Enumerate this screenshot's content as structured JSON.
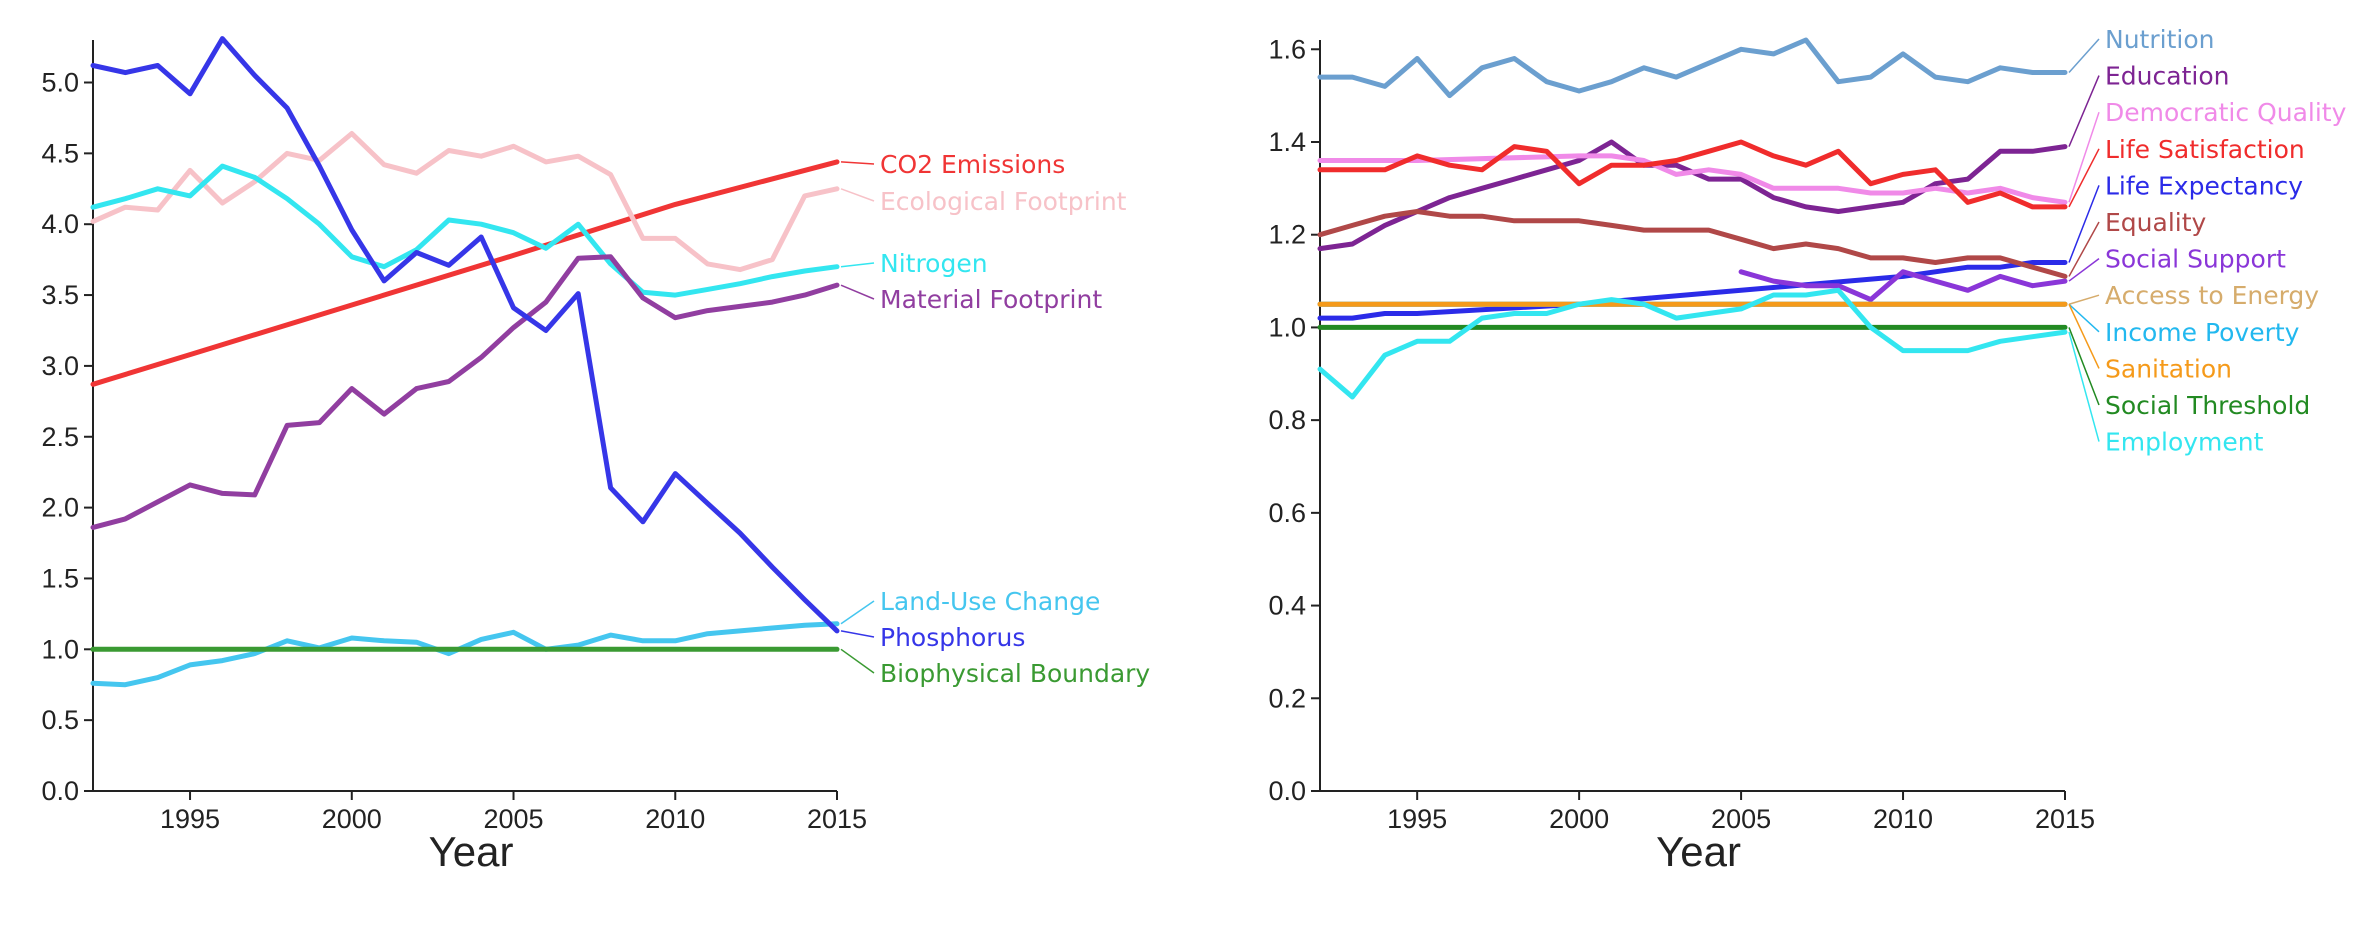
{
  "chart_data": [
    {
      "type": "line",
      "title": "",
      "xlabel": "Year",
      "ylabel": "",
      "xlim": [
        1992,
        2015
      ],
      "ylim": [
        0,
        5.3
      ],
      "xticks": [
        "1995",
        "2000",
        "2005",
        "2010",
        "2015"
      ],
      "yticks": [
        "0.0",
        "0.5",
        "1.0",
        "1.5",
        "2.0",
        "2.5",
        "3.0",
        "3.5",
        "4.0",
        "4.5",
        "5.0"
      ],
      "grid": false,
      "legend": "right-end-labels",
      "series": [
        {
          "name": "CO2 Emissions",
          "color": "#f03535",
          "x": [
            1992,
            1995,
            2000,
            2005,
            2010,
            2015
          ],
          "y": [
            2.87,
            3.08,
            3.43,
            3.78,
            4.14,
            4.44
          ]
        },
        {
          "name": "Ecological Footprint",
          "color": "#f7c2c8",
          "x": [
            1992,
            1993,
            1994,
            1995,
            1996,
            1997,
            1998,
            1999,
            2000,
            2001,
            2002,
            2003,
            2004,
            2005,
            2006,
            2007,
            2008,
            2009,
            2010,
            2011,
            2012,
            2013,
            2014,
            2015
          ],
          "y": [
            4.02,
            4.12,
            4.1,
            4.38,
            4.15,
            4.3,
            4.5,
            4.45,
            4.64,
            4.42,
            4.36,
            4.52,
            4.48,
            4.55,
            4.44,
            4.48,
            4.35,
            3.9,
            3.9,
            3.72,
            3.68,
            3.75,
            4.2,
            4.25
          ]
        },
        {
          "name": "Nitrogen",
          "color": "#33e6f0",
          "x": [
            1992,
            1993,
            1994,
            1995,
            1996,
            1997,
            1998,
            1999,
            2000,
            2001,
            2002,
            2003,
            2004,
            2005,
            2006,
            2007,
            2008,
            2009,
            2010,
            2011,
            2012,
            2013,
            2014,
            2015
          ],
          "y": [
            4.12,
            4.18,
            4.25,
            4.2,
            4.41,
            4.33,
            4.18,
            4.0,
            3.77,
            3.7,
            3.82,
            4.03,
            4.0,
            3.94,
            3.83,
            4.0,
            3.72,
            3.52,
            3.5,
            3.54,
            3.58,
            3.63,
            3.67,
            3.7
          ]
        },
        {
          "name": "Material Footprint",
          "color": "#913ea0",
          "x": [
            1992,
            1993,
            1994,
            1995,
            1996,
            1997,
            1998,
            1999,
            2000,
            2001,
            2002,
            2003,
            2004,
            2005,
            2006,
            2007,
            2008,
            2009,
            2010,
            2011,
            2012,
            2013,
            2014,
            2015
          ],
          "y": [
            1.86,
            1.92,
            2.04,
            2.16,
            2.1,
            2.09,
            2.58,
            2.6,
            2.84,
            2.66,
            2.84,
            2.89,
            3.06,
            3.27,
            3.45,
            3.76,
            3.77,
            3.48,
            3.34,
            3.39,
            3.42,
            3.45,
            3.5,
            3.57
          ]
        },
        {
          "name": "Land-Use Change",
          "color": "#45c6ef",
          "x": [
            1992,
            1993,
            1994,
            1995,
            1996,
            1997,
            1998,
            1999,
            2000,
            2001,
            2002,
            2003,
            2004,
            2005,
            2006,
            2007,
            2008,
            2009,
            2010,
            2011,
            2012,
            2013,
            2014,
            2015
          ],
          "y": [
            0.76,
            0.75,
            0.8,
            0.89,
            0.92,
            0.97,
            1.06,
            1.01,
            1.08,
            1.06,
            1.05,
            0.97,
            1.07,
            1.12,
            1.0,
            1.03,
            1.1,
            1.06,
            1.06,
            1.11,
            1.13,
            1.15,
            1.17,
            1.18
          ]
        },
        {
          "name": "Phosphorus",
          "color": "#3636e8",
          "x": [
            1992,
            1993,
            1994,
            1995,
            1996,
            1997,
            1998,
            1999,
            2000,
            2001,
            2002,
            2003,
            2004,
            2005,
            2006,
            2007,
            2008,
            2009,
            2010,
            2011,
            2012,
            2013,
            2014,
            2015
          ],
          "y": [
            5.12,
            5.07,
            5.12,
            4.92,
            5.31,
            5.05,
            4.82,
            4.41,
            3.96,
            3.6,
            3.8,
            3.71,
            3.91,
            3.41,
            3.25,
            3.51,
            2.14,
            1.9,
            2.24,
            2.03,
            1.82,
            1.58,
            1.35,
            1.13
          ]
        },
        {
          "name": "Biophysical Boundary",
          "color": "#3a9a32",
          "x": [
            1992,
            2015
          ],
          "y": [
            1.0,
            1.0
          ]
        }
      ]
    },
    {
      "type": "line",
      "title": "",
      "xlabel": "Year",
      "ylabel": "",
      "xlim": [
        1992,
        2015
      ],
      "ylim": [
        0,
        1.62
      ],
      "xticks": [
        "1995",
        "2000",
        "2005",
        "2010",
        "2015"
      ],
      "yticks": [
        "0.0",
        "0.2",
        "0.4",
        "0.6",
        "0.8",
        "1.0",
        "1.2",
        "1.4",
        "1.6"
      ],
      "grid": false,
      "legend": "right-end-labels",
      "series": [
        {
          "name": "Nutrition",
          "color": "#6b9fcf",
          "x": [
            1992,
            1993,
            1994,
            1995,
            1996,
            1997,
            1998,
            1999,
            2000,
            2001,
            2002,
            2003,
            2004,
            2005,
            2006,
            2007,
            2008,
            2009,
            2010,
            2011,
            2012,
            2013,
            2014,
            2015
          ],
          "y": [
            1.54,
            1.54,
            1.52,
            1.58,
            1.5,
            1.56,
            1.58,
            1.53,
            1.51,
            1.53,
            1.56,
            1.54,
            1.57,
            1.6,
            1.59,
            1.62,
            1.53,
            1.54,
            1.59,
            1.54,
            1.53,
            1.56,
            1.55,
            1.55
          ]
        },
        {
          "name": "Education",
          "color": "#7d2493",
          "x": [
            1992,
            1993,
            1994,
            1995,
            1996,
            1997,
            1998,
            1999,
            2000,
            2001,
            2002,
            2003,
            2004,
            2005,
            2006,
            2007,
            2008,
            2009,
            2010,
            2011,
            2012,
            2013,
            2014,
            2015
          ],
          "y": [
            1.17,
            1.18,
            1.22,
            1.25,
            1.28,
            1.3,
            1.32,
            1.34,
            1.36,
            1.4,
            1.35,
            1.35,
            1.32,
            1.32,
            1.28,
            1.26,
            1.25,
            1.26,
            1.27,
            1.31,
            1.32,
            1.38,
            1.38,
            1.39
          ]
        },
        {
          "name": "Democratic Quality",
          "color": "#f08ae8",
          "x": [
            1992,
            1995,
            2000,
            2001,
            2002,
            2003,
            2004,
            2005,
            2006,
            2007,
            2008,
            2009,
            2010,
            2011,
            2012,
            2013,
            2014,
            2015
          ],
          "y": [
            1.36,
            1.36,
            1.37,
            1.37,
            1.36,
            1.33,
            1.34,
            1.33,
            1.3,
            1.3,
            1.3,
            1.29,
            1.29,
            1.3,
            1.29,
            1.3,
            1.28,
            1.27
          ]
        },
        {
          "name": "Life Satisfaction",
          "color": "#f02c2c",
          "x": [
            1992,
            1993,
            1994,
            1995,
            1996,
            1997,
            1998,
            1999,
            2000,
            2001,
            2002,
            2003,
            2004,
            2005,
            2006,
            2007,
            2008,
            2009,
            2010,
            2011,
            2012,
            2013,
            2014,
            2015
          ],
          "y": [
            1.34,
            1.34,
            1.34,
            1.37,
            1.35,
            1.34,
            1.39,
            1.38,
            1.31,
            1.35,
            1.35,
            1.36,
            1.38,
            1.4,
            1.37,
            1.35,
            1.38,
            1.31,
            1.33,
            1.34,
            1.27,
            1.29,
            1.26,
            1.26
          ]
        },
        {
          "name": "Life Expectancy",
          "color": "#2b2be8",
          "x": [
            1992,
            1993,
            1994,
            1995,
            2000,
            2005,
            2010,
            2012,
            2013,
            2014,
            2015
          ],
          "y": [
            1.02,
            1.02,
            1.03,
            1.03,
            1.05,
            1.08,
            1.11,
            1.13,
            1.13,
            1.14,
            1.14
          ]
        },
        {
          "name": "Equality",
          "color": "#b04848",
          "x": [
            1992,
            1993,
            1994,
            1995,
            1996,
            1997,
            1998,
            1999,
            2000,
            2001,
            2002,
            2003,
            2004,
            2005,
            2006,
            2007,
            2008,
            2009,
            2010,
            2011,
            2012,
            2013,
            2014,
            2015
          ],
          "y": [
            1.2,
            1.22,
            1.24,
            1.25,
            1.24,
            1.24,
            1.23,
            1.23,
            1.23,
            1.22,
            1.21,
            1.21,
            1.21,
            1.19,
            1.17,
            1.18,
            1.17,
            1.15,
            1.15,
            1.14,
            1.15,
            1.15,
            1.13,
            1.11
          ]
        },
        {
          "name": "Social Support",
          "color": "#8a36d8",
          "x": [
            2005,
            2006,
            2007,
            2008,
            2009,
            2010,
            2011,
            2012,
            2013,
            2014,
            2015
          ],
          "y": [
            1.12,
            1.1,
            1.09,
            1.09,
            1.06,
            1.12,
            1.1,
            1.08,
            1.11,
            1.09,
            1.1
          ]
        },
        {
          "name": "Access to Energy",
          "color": "#d6ac6c",
          "x": [
            1992,
            2015
          ],
          "y": [
            1.05,
            1.05
          ]
        },
        {
          "name": "Income Poverty",
          "color": "#22b8ef",
          "x": [
            1992,
            2015
          ],
          "y": [
            1.05,
            1.05
          ]
        },
        {
          "name": "Sanitation",
          "color": "#f59a1a",
          "x": [
            1992,
            2015
          ],
          "y": [
            1.05,
            1.05
          ]
        },
        {
          "name": "Social Threshold",
          "color": "#228a22",
          "x": [
            1992,
            2015
          ],
          "y": [
            1.0,
            1.0
          ]
        },
        {
          "name": "Employment",
          "color": "#33e6f0",
          "x": [
            1992,
            1993,
            1994,
            1995,
            1996,
            1997,
            1998,
            1999,
            2000,
            2001,
            2002,
            2003,
            2004,
            2005,
            2006,
            2007,
            2008,
            2009,
            2010,
            2011,
            2012,
            2013,
            2014,
            2015
          ],
          "y": [
            0.91,
            0.85,
            0.94,
            0.97,
            0.97,
            1.02,
            1.03,
            1.03,
            1.05,
            1.06,
            1.05,
            1.02,
            1.03,
            1.04,
            1.07,
            1.07,
            1.08,
            1.0,
            0.95,
            0.95,
            0.95,
            0.97,
            0.98,
            0.99
          ]
        }
      ]
    }
  ]
}
